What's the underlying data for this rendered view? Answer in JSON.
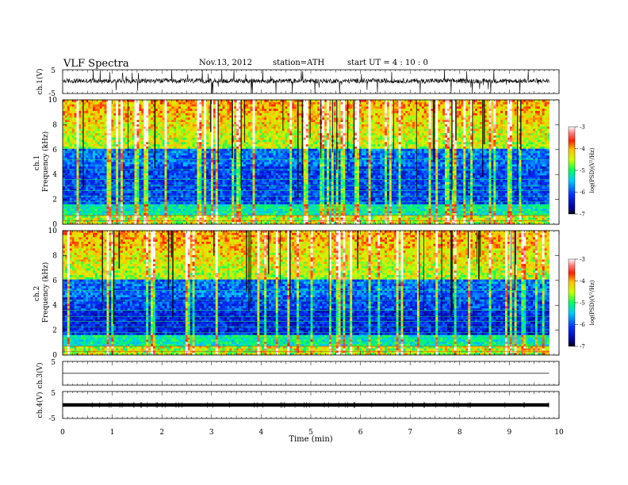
{
  "header": {
    "title": "VLF  Spectra",
    "date": "Nov.13, 2012",
    "station": "station=ATH",
    "start": "start  UT  =   4  : 10 : 0"
  },
  "chart_data": [
    {
      "type": "line",
      "panel": "ch1-waveform",
      "ylabel": "ch.1(V)",
      "xlim": [
        0,
        10
      ],
      "ylim": [
        -5,
        5
      ],
      "yticks": [
        "5",
        "-5"
      ],
      "baseline_value": 0.3,
      "data_end_min": 9.8
    },
    {
      "type": "heatmap",
      "panel": "ch1-spectrogram",
      "ylabel": "ch.1\nFrequency  (kHz)",
      "xlim": [
        0,
        10
      ],
      "ylim": [
        0,
        10
      ],
      "yticks": [
        "0",
        "2",
        "4",
        "6",
        "8",
        "10"
      ],
      "colorbar": {
        "label": "log(PSD)(V²/Hz)",
        "range": [
          -7,
          -3
        ],
        "ticks": [
          "-3",
          "-4",
          "-5",
          "-6",
          "-7"
        ]
      }
    },
    {
      "type": "heatmap",
      "panel": "ch2-spectrogram",
      "ylabel": "ch.2\nFrequency  (kHz)",
      "xlim": [
        0,
        10
      ],
      "ylim": [
        0,
        10
      ],
      "yticks": [
        "0",
        "2",
        "4",
        "6",
        "8",
        "10"
      ],
      "colorbar": {
        "label": "log(PSD)(V²/Hz)",
        "range": [
          -7,
          -3
        ],
        "ticks": [
          "-3",
          "-4",
          "-5",
          "-6",
          "-7"
        ]
      }
    },
    {
      "type": "line",
      "panel": "ch3-waveform",
      "ylabel": "ch.3(V)",
      "xlim": [
        0,
        10
      ],
      "ylim": [
        -5,
        5
      ],
      "yticks": [
        "5",
        "-5"
      ],
      "baseline_value": 0
    },
    {
      "type": "line",
      "panel": "ch4-waveform",
      "ylabel": "ch.4(V)",
      "xlim": [
        0,
        10
      ],
      "ylim": [
        -5,
        5
      ],
      "yticks": [
        "5",
        "-5"
      ],
      "baseline_value": 0
    }
  ],
  "xaxis": {
    "label": "Time  (min)",
    "ticks": [
      "0",
      "1",
      "2",
      "3",
      "4",
      "5",
      "6",
      "7",
      "8",
      "9",
      "10"
    ]
  }
}
